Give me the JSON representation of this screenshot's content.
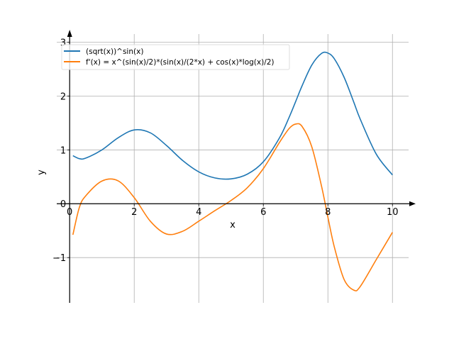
{
  "chart_data": {
    "type": "line",
    "title": "",
    "xlabel": "x",
    "ylabel": "y",
    "xlim": [
      -0.4,
      10.5
    ],
    "ylim": [
      -1.84,
      3.15
    ],
    "xticks": [
      0,
      2,
      4,
      6,
      8,
      10
    ],
    "xtick_labels": [
      "0",
      "2",
      "4",
      "6",
      "8",
      "10"
    ],
    "yticks": [
      -1,
      0,
      1,
      2,
      3
    ],
    "ytick_labels": [
      "−1",
      "0",
      "1",
      "2",
      "3"
    ],
    "grid": true,
    "legend_position": "top-left",
    "x": [
      0.1,
      0.3,
      0.5,
      1,
      1.5,
      2,
      2.5,
      3,
      3.5,
      4,
      4.5,
      5,
      5.5,
      6,
      6.5,
      6.8,
      7,
      7.2,
      7.5,
      7.8,
      8,
      8.2,
      8.5,
      8.8,
      9,
      9.5,
      10
    ],
    "series": [
      {
        "name": "(sqrt(x))^sin(x)",
        "color": "#1f77b4",
        "values": [
          0.892,
          0.837,
          0.847,
          1.0,
          1.224,
          1.37,
          1.316,
          1.081,
          0.803,
          0.592,
          0.479,
          0.462,
          0.548,
          0.779,
          1.223,
          1.606,
          1.895,
          2.189,
          2.573,
          2.789,
          2.797,
          2.69,
          2.35,
          1.889,
          1.573,
          0.919,
          0.535
        ]
      },
      {
        "name": "f'(x) = x^(sin(x)/2)*(sin(x)/(2*x) + cos(x)*log(x)/2)",
        "color": "#ff7f0e",
        "values": [
          -0.576,
          -0.069,
          0.148,
          0.421,
          0.425,
          0.114,
          -0.325,
          -0.562,
          -0.511,
          -0.324,
          -0.128,
          0.061,
          0.296,
          0.652,
          1.138,
          1.397,
          1.479,
          1.435,
          1.059,
          0.333,
          -0.25,
          -0.805,
          -1.403,
          -1.603,
          -1.538,
          -1.035,
          -0.531
        ]
      }
    ]
  }
}
